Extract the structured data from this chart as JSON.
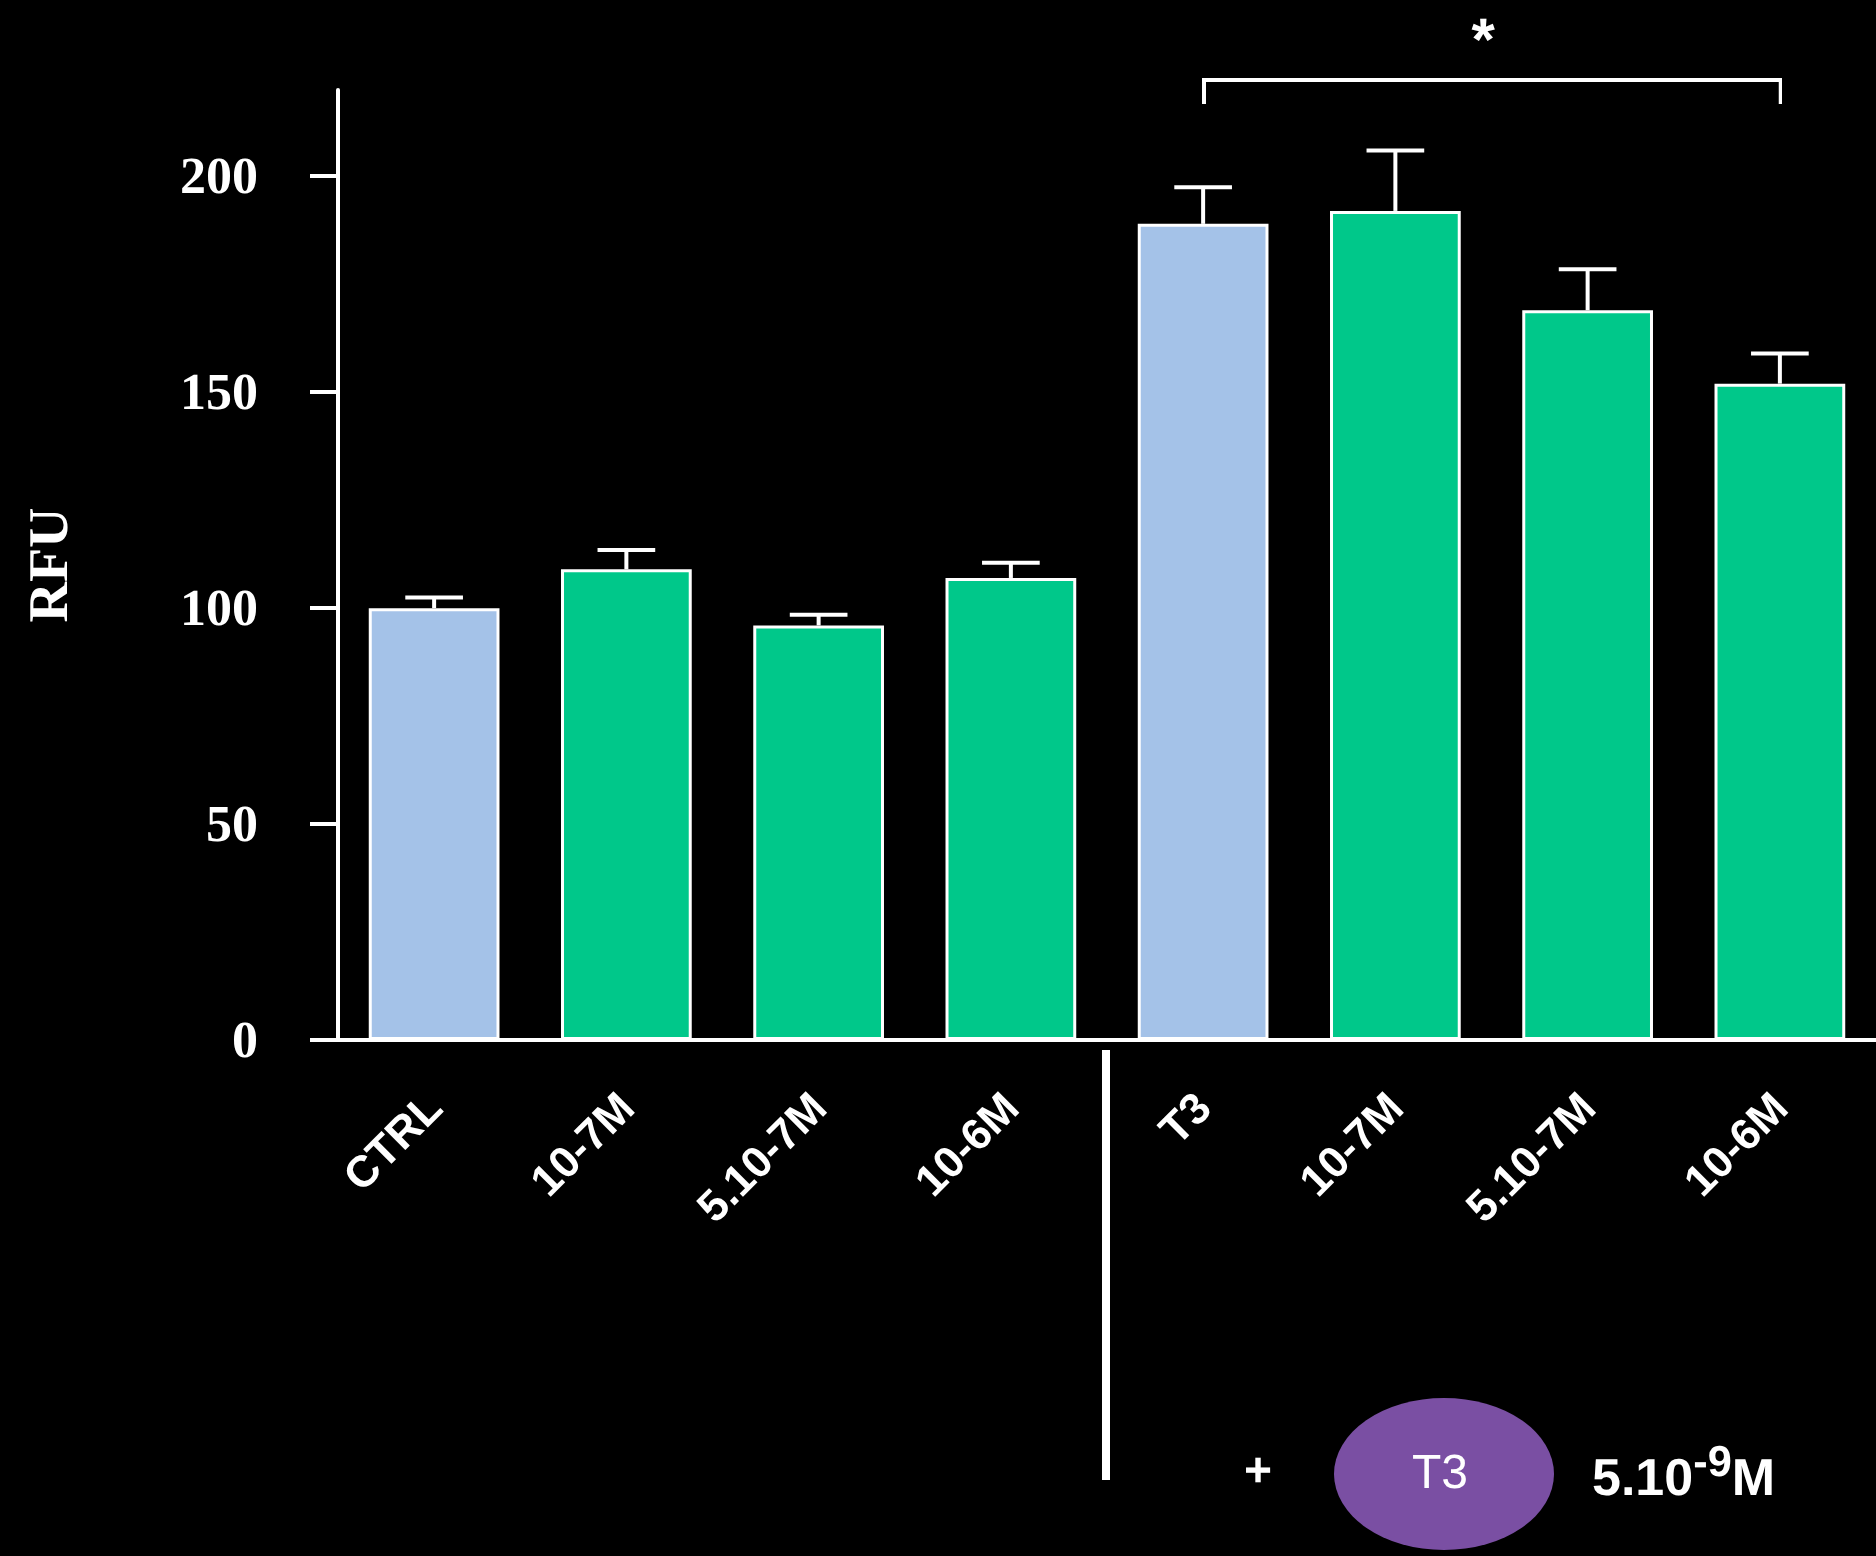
{
  "chart_data": {
    "type": "bar",
    "ylabel": "RFU",
    "categories": [
      "CTRL",
      "10-7M",
      "5.10-7M",
      "10-6M",
      "T3",
      "10-7M",
      "5.10-7M",
      "10-6M"
    ],
    "values": [
      100,
      109,
      96,
      107,
      189,
      192,
      169,
      152
    ],
    "errors": [
      2.5,
      4.5,
      2.5,
      3.5,
      8.5,
      14,
      9.5,
      7
    ],
    "colors": [
      "#a4c2e8",
      "#00c88a",
      "#00c88a",
      "#00c88a",
      "#a4c2e8",
      "#00c88a",
      "#00c88a",
      "#00c88a"
    ],
    "ylim": [
      0,
      220
    ],
    "yticks": [
      0,
      50,
      100,
      150,
      200
    ],
    "grid": false,
    "annotations": [
      "*",
      "+",
      "T3",
      "5.10$^{-9}$M"
    ]
  }
}
